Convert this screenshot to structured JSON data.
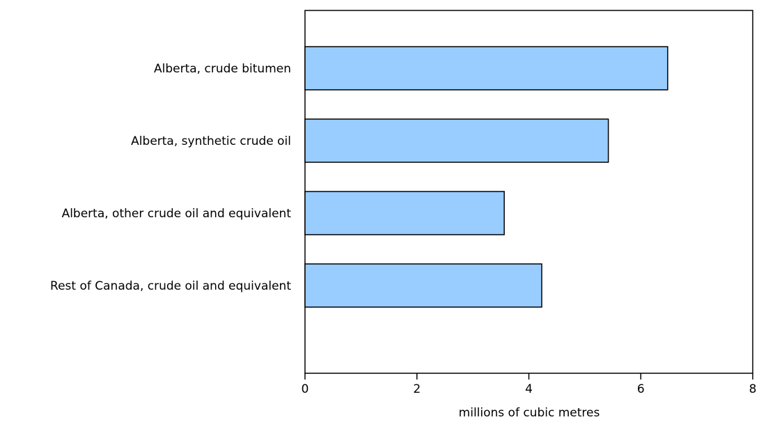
{
  "chart_data": {
    "type": "bar",
    "orientation": "horizontal",
    "categories": [
      "Alberta, crude bitumen",
      "Alberta, synthetic crude oil",
      "Alberta, other crude oil and equivalent",
      "Rest of Canada, crude oil and equivalent"
    ],
    "values": [
      6.48,
      5.42,
      3.56,
      4.23
    ],
    "xlabel": "millions of cubic metres",
    "xlim": [
      0,
      8
    ],
    "xticks": [
      "0",
      "2",
      "4",
      "6",
      "8"
    ],
    "grid": false,
    "colors": {
      "bar_fill": "#99ccff",
      "bar_stroke": "#000000",
      "axis": "#000000"
    }
  }
}
